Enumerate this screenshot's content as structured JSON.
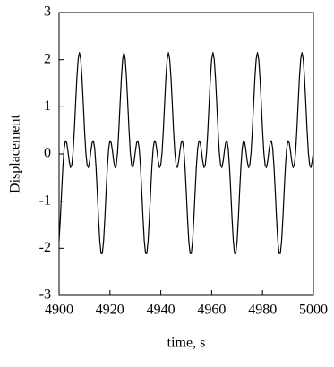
{
  "chart_data": {
    "type": "line",
    "xlabel": "time, s",
    "ylabel": "Displacement",
    "color": "#000000",
    "xlim": [
      4900,
      5000
    ],
    "xticks": [
      4900,
      4920,
      4940,
      4960,
      4980,
      5000
    ],
    "ylim": [
      -3,
      3
    ],
    "yticks": [
      -3,
      -2,
      -1,
      0,
      1,
      2,
      3
    ],
    "x": [
      4900,
      4900.5,
      4901,
      4901.5,
      4902,
      4902.5,
      4903,
      4903.5,
      4904,
      4904.5,
      4905,
      4905.5,
      4906,
      4906.5,
      4907,
      4907.5,
      4908,
      4908.5,
      4909,
      4909.5,
      4910,
      4910.5,
      4911,
      4911.5,
      4912,
      4912.5,
      4913,
      4913.5,
      4914,
      4914.5,
      4915,
      4915.5,
      4916,
      4916.5,
      4917,
      4917.5,
      4918,
      4918.5,
      4919,
      4919.5,
      4920,
      4920.5,
      4921,
      4921.5,
      4922,
      4922.5,
      4923,
      4923.5,
      4924,
      4924.5,
      4925,
      4925.5,
      4926,
      4926.5,
      4927,
      4927.5,
      4928,
      4928.5,
      4929,
      4929.5,
      4930,
      4930.5,
      4931,
      4931.5,
      4932,
      4932.5,
      4933,
      4933.5,
      4934,
      4934.5,
      4935,
      4935.5,
      4936,
      4936.5,
      4937,
      4937.5,
      4938,
      4938.5,
      4939,
      4939.5,
      4940,
      4940.5,
      4941,
      4941.5,
      4942,
      4942.5,
      4943,
      4943.5,
      4944,
      4944.5,
      4945,
      4945.5,
      4946,
      4946.5,
      4947,
      4947.5,
      4948,
      4948.5,
      4949,
      4949.5,
      4950,
      4950.5,
      4951,
      4951.5,
      4952,
      4952.5,
      4953,
      4953.5,
      4954,
      4954.5,
      4955,
      4955.5,
      4956,
      4956.5,
      4957,
      4957.5,
      4958,
      4958.5,
      4959,
      4959.5,
      4960,
      4960.5,
      4961,
      4961.5,
      4962,
      4962.5,
      4963,
      4963.5,
      4964,
      4964.5,
      4965,
      4965.5,
      4966,
      4966.5,
      4967,
      4967.5,
      4968,
      4968.5,
      4969,
      4969.5,
      4970,
      4970.5,
      4971,
      4971.5,
      4972,
      4972.5,
      4973,
      4973.5,
      4974,
      4974.5,
      4975,
      4975.5,
      4976,
      4976.5,
      4977,
      4977.5,
      4978,
      4978.5,
      4979,
      4979.5,
      4980,
      4980.5,
      4981,
      4981.5,
      4982,
      4982.5,
      4983,
      4983.5,
      4984,
      4984.5,
      4985,
      4985.5,
      4986,
      4986.5,
      4987,
      4987.5,
      4988,
      4988.5,
      4989,
      4989.5,
      4990,
      4990.5,
      4991,
      4991.5,
      4992,
      4992.5,
      4993,
      4993.5,
      4994,
      4994.5,
      4995,
      4995.5,
      4996,
      4996.5,
      4997,
      4997.5,
      4998,
      4998.5,
      4999,
      4999.5,
      5000
    ],
    "values": [
      -1.84,
      -1.36,
      -0.79,
      -0.26,
      0.12,
      0.28,
      0.24,
      0.06,
      -0.16,
      -0.29,
      -0.23,
      0.04,
      0.51,
      1.08,
      1.62,
      2.01,
      2.15,
      2.01,
      1.62,
      1.08,
      0.51,
      0.04,
      -0.23,
      -0.29,
      -0.16,
      0.06,
      0.24,
      0.28,
      0.12,
      -0.26,
      -0.79,
      -1.36,
      -1.84,
      -2.11,
      -2.11,
      -1.84,
      -1.36,
      -0.79,
      -0.26,
      0.12,
      0.28,
      0.24,
      0.06,
      -0.16,
      -0.29,
      -0.23,
      0.04,
      0.51,
      1.08,
      1.62,
      2.01,
      2.15,
      2.01,
      1.62,
      1.08,
      0.51,
      0.04,
      -0.23,
      -0.29,
      -0.16,
      0.06,
      0.24,
      0.28,
      0.12,
      -0.26,
      -0.79,
      -1.36,
      -1.84,
      -2.11,
      -2.11,
      -1.84,
      -1.36,
      -0.79,
      -0.26,
      0.12,
      0.28,
      0.24,
      0.06,
      -0.16,
      -0.29,
      -0.23,
      0.04,
      0.51,
      1.08,
      1.62,
      2.01,
      2.15,
      2.01,
      1.62,
      1.08,
      0.51,
      0.04,
      -0.23,
      -0.29,
      -0.16,
      0.06,
      0.24,
      0.28,
      0.12,
      -0.26,
      -0.79,
      -1.36,
      -1.84,
      -2.11,
      -2.11,
      -1.84,
      -1.36,
      -0.79,
      -0.26,
      0.12,
      0.28,
      0.24,
      0.06,
      -0.16,
      -0.29,
      -0.23,
      0.04,
      0.51,
      1.08,
      1.62,
      2.01,
      2.15,
      2.01,
      1.62,
      1.08,
      0.51,
      0.04,
      -0.23,
      -0.29,
      -0.16,
      0.06,
      0.24,
      0.28,
      0.12,
      -0.26,
      -0.79,
      -1.36,
      -1.84,
      -2.11,
      -2.11,
      -1.84,
      -1.36,
      -0.79,
      -0.26,
      0.12,
      0.28,
      0.24,
      0.06,
      -0.16,
      -0.29,
      -0.23,
      0.04,
      0.51,
      1.08,
      1.62,
      2.01,
      2.15,
      2.01,
      1.62,
      1.08,
      0.51,
      0.04,
      -0.23,
      -0.29,
      -0.16,
      0.06,
      0.24,
      0.28,
      0.12,
      -0.26,
      -0.79,
      -1.36,
      -1.84,
      -2.11,
      -2.11,
      -1.84,
      -1.36,
      -0.79,
      -0.26,
      0.12,
      0.28,
      0.24,
      0.06,
      -0.16,
      -0.29,
      -0.23,
      0.04,
      0.51,
      1.08,
      1.62,
      2.01,
      2.15,
      2.01,
      1.62,
      1.08,
      0.51,
      0.04,
      -0.23,
      -0.29,
      -0.16,
      0.06
    ]
  }
}
